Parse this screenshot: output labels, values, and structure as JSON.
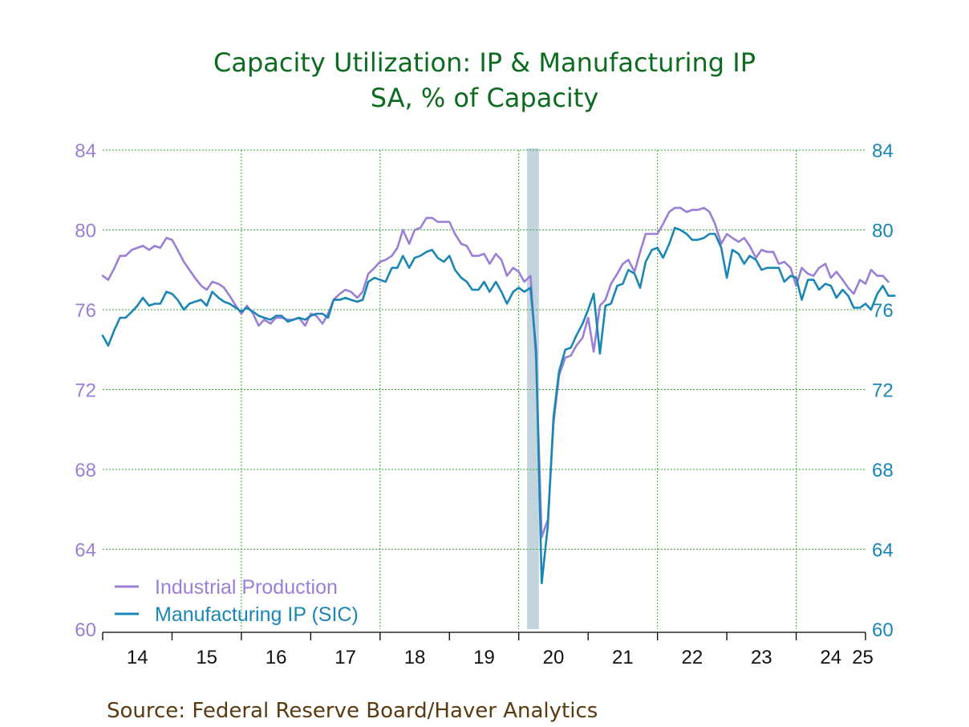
{
  "colors": {
    "industrial_production": "#9b7fd6",
    "manufacturing": "#1a86b4",
    "title": "#0b6b1e",
    "grid": "#33aa33",
    "recession": "#c2d4de",
    "source": "#5a3a10"
  },
  "chart_data": {
    "type": "line",
    "title": "Capacity Utilization: IP & Manufacturing IP",
    "subtitle": "SA, % of Capacity",
    "source": "Source:  Federal Reserve Board/Haver Analytics",
    "y_left": {
      "ticks": [
        "84",
        "80",
        "76",
        "72",
        "68",
        "64",
        "60"
      ],
      "range": [
        60,
        84
      ]
    },
    "y_right": {
      "ticks": [
        "84",
        "80",
        "76",
        "72",
        "68",
        "64",
        "60"
      ],
      "range": [
        60,
        84
      ]
    },
    "x_axis": {
      "range": [
        2014.0,
        2025.0
      ],
      "tick_labels": [
        "14",
        "15",
        "16",
        "17",
        "18",
        "19",
        "20",
        "21",
        "22",
        "23",
        "24",
        "25"
      ]
    },
    "grid": true,
    "legend_position": "bottom-left",
    "recession": {
      "start": 2020.12,
      "end": 2020.29
    },
    "series": [
      {
        "name": "Industrial Production",
        "color_key": "industrial_production",
        "points": [
          [
            2014.0,
            77.7
          ],
          [
            2014.08,
            77.5
          ],
          [
            2014.17,
            78.1
          ],
          [
            2014.25,
            78.7
          ],
          [
            2014.33,
            78.7
          ],
          [
            2014.42,
            79.0
          ],
          [
            2014.5,
            79.1
          ],
          [
            2014.58,
            79.2
          ],
          [
            2014.67,
            79.0
          ],
          [
            2014.75,
            79.2
          ],
          [
            2014.83,
            79.1
          ],
          [
            2014.92,
            79.6
          ],
          [
            2015.0,
            79.5
          ],
          [
            2015.08,
            79.0
          ],
          [
            2015.17,
            78.4
          ],
          [
            2015.25,
            78.0
          ],
          [
            2015.33,
            77.6
          ],
          [
            2015.42,
            77.2
          ],
          [
            2015.5,
            77.0
          ],
          [
            2015.58,
            77.4
          ],
          [
            2015.67,
            77.3
          ],
          [
            2015.75,
            77.1
          ],
          [
            2015.83,
            76.7
          ],
          [
            2015.92,
            76.2
          ],
          [
            2016.0,
            75.8
          ],
          [
            2016.08,
            76.2
          ],
          [
            2016.17,
            75.8
          ],
          [
            2016.25,
            75.2
          ],
          [
            2016.33,
            75.5
          ],
          [
            2016.42,
            75.3
          ],
          [
            2016.5,
            75.6
          ],
          [
            2016.58,
            75.6
          ],
          [
            2016.67,
            75.5
          ],
          [
            2016.75,
            75.5
          ],
          [
            2016.83,
            75.6
          ],
          [
            2016.92,
            75.2
          ],
          [
            2017.0,
            75.8
          ],
          [
            2017.08,
            75.7
          ],
          [
            2017.17,
            75.3
          ],
          [
            2017.25,
            75.8
          ],
          [
            2017.33,
            76.5
          ],
          [
            2017.42,
            76.8
          ],
          [
            2017.5,
            77.0
          ],
          [
            2017.58,
            76.9
          ],
          [
            2017.67,
            76.6
          ],
          [
            2017.75,
            76.9
          ],
          [
            2017.83,
            77.8
          ],
          [
            2017.92,
            78.1
          ],
          [
            2018.0,
            78.4
          ],
          [
            2018.08,
            78.5
          ],
          [
            2018.17,
            78.7
          ],
          [
            2018.25,
            79.1
          ],
          [
            2018.33,
            80.0
          ],
          [
            2018.42,
            79.3
          ],
          [
            2018.5,
            80.0
          ],
          [
            2018.58,
            80.1
          ],
          [
            2018.67,
            80.6
          ],
          [
            2018.75,
            80.6
          ],
          [
            2018.83,
            80.4
          ],
          [
            2018.92,
            80.4
          ],
          [
            2019.0,
            80.4
          ],
          [
            2019.08,
            79.8
          ],
          [
            2019.17,
            79.3
          ],
          [
            2019.25,
            79.2
          ],
          [
            2019.33,
            78.7
          ],
          [
            2019.42,
            78.7
          ],
          [
            2019.5,
            78.8
          ],
          [
            2019.58,
            78.3
          ],
          [
            2019.67,
            78.8
          ],
          [
            2019.75,
            78.5
          ],
          [
            2019.83,
            77.7
          ],
          [
            2019.92,
            78.1
          ],
          [
            2020.0,
            77.9
          ],
          [
            2020.08,
            77.4
          ],
          [
            2020.17,
            77.7
          ],
          [
            2020.25,
            73.5
          ],
          [
            2020.33,
            64.6
          ],
          [
            2020.42,
            65.5
          ],
          [
            2020.5,
            70.3
          ],
          [
            2020.58,
            72.7
          ],
          [
            2020.67,
            73.6
          ],
          [
            2020.75,
            73.7
          ],
          [
            2020.83,
            74.2
          ],
          [
            2020.92,
            74.6
          ],
          [
            2021.0,
            75.6
          ],
          [
            2021.08,
            73.9
          ],
          [
            2021.17,
            76.2
          ],
          [
            2021.25,
            76.5
          ],
          [
            2021.33,
            77.3
          ],
          [
            2021.42,
            77.8
          ],
          [
            2021.5,
            78.3
          ],
          [
            2021.58,
            78.5
          ],
          [
            2021.67,
            77.9
          ],
          [
            2021.75,
            78.9
          ],
          [
            2021.83,
            79.8
          ],
          [
            2021.92,
            79.8
          ],
          [
            2022.0,
            79.8
          ],
          [
            2022.08,
            80.3
          ],
          [
            2022.17,
            80.9
          ],
          [
            2022.25,
            81.1
          ],
          [
            2022.33,
            81.1
          ],
          [
            2022.42,
            80.9
          ],
          [
            2022.5,
            81.0
          ],
          [
            2022.58,
            81.0
          ],
          [
            2022.67,
            81.1
          ],
          [
            2022.75,
            80.9
          ],
          [
            2022.83,
            80.3
          ],
          [
            2022.92,
            79.3
          ],
          [
            2023.0,
            79.8
          ],
          [
            2023.08,
            79.6
          ],
          [
            2023.17,
            79.4
          ],
          [
            2023.25,
            79.6
          ],
          [
            2023.33,
            79.2
          ],
          [
            2023.42,
            78.6
          ],
          [
            2023.5,
            79.0
          ],
          [
            2023.58,
            78.9
          ],
          [
            2023.67,
            78.9
          ],
          [
            2023.75,
            78.3
          ],
          [
            2023.83,
            78.4
          ],
          [
            2023.92,
            78.1
          ],
          [
            2024.0,
            77.2
          ],
          [
            2024.08,
            78.1
          ],
          [
            2024.17,
            77.8
          ],
          [
            2024.25,
            77.7
          ],
          [
            2024.33,
            78.1
          ],
          [
            2024.42,
            78.3
          ],
          [
            2024.5,
            77.6
          ],
          [
            2024.58,
            77.9
          ],
          [
            2024.67,
            77.5
          ],
          [
            2024.75,
            77.1
          ],
          [
            2024.83,
            76.8
          ],
          [
            2024.92,
            77.5
          ],
          [
            2025.0,
            77.3
          ],
          [
            2025.08,
            78.0
          ],
          [
            2025.17,
            77.7
          ],
          [
            2025.25,
            77.7
          ],
          [
            2025.33,
            77.4
          ]
        ]
      },
      {
        "name": "Manufacturing IP (SIC)",
        "color_key": "manufacturing",
        "points": [
          [
            2014.0,
            74.7
          ],
          [
            2014.08,
            74.2
          ],
          [
            2014.17,
            75.0
          ],
          [
            2014.25,
            75.6
          ],
          [
            2014.33,
            75.6
          ],
          [
            2014.42,
            75.9
          ],
          [
            2014.5,
            76.2
          ],
          [
            2014.58,
            76.6
          ],
          [
            2014.67,
            76.2
          ],
          [
            2014.75,
            76.3
          ],
          [
            2014.83,
            76.3
          ],
          [
            2014.92,
            76.9
          ],
          [
            2015.0,
            76.8
          ],
          [
            2015.08,
            76.5
          ],
          [
            2015.17,
            76.0
          ],
          [
            2015.25,
            76.3
          ],
          [
            2015.33,
            76.4
          ],
          [
            2015.42,
            76.5
          ],
          [
            2015.5,
            76.2
          ],
          [
            2015.58,
            76.9
          ],
          [
            2015.67,
            76.6
          ],
          [
            2015.75,
            76.4
          ],
          [
            2015.83,
            76.3
          ],
          [
            2015.92,
            76.1
          ],
          [
            2016.0,
            75.9
          ],
          [
            2016.08,
            76.1
          ],
          [
            2016.17,
            75.9
          ],
          [
            2016.25,
            75.7
          ],
          [
            2016.33,
            75.6
          ],
          [
            2016.42,
            75.5
          ],
          [
            2016.5,
            75.7
          ],
          [
            2016.58,
            75.7
          ],
          [
            2016.67,
            75.4
          ],
          [
            2016.75,
            75.5
          ],
          [
            2016.83,
            75.6
          ],
          [
            2016.92,
            75.5
          ],
          [
            2017.0,
            75.7
          ],
          [
            2017.08,
            75.8
          ],
          [
            2017.17,
            75.8
          ],
          [
            2017.25,
            75.6
          ],
          [
            2017.33,
            76.5
          ],
          [
            2017.42,
            76.5
          ],
          [
            2017.5,
            76.6
          ],
          [
            2017.58,
            76.5
          ],
          [
            2017.67,
            76.4
          ],
          [
            2017.75,
            76.5
          ],
          [
            2017.83,
            77.4
          ],
          [
            2017.92,
            77.6
          ],
          [
            2018.0,
            77.5
          ],
          [
            2018.08,
            77.4
          ],
          [
            2018.17,
            78.1
          ],
          [
            2018.25,
            78.1
          ],
          [
            2018.33,
            78.7
          ],
          [
            2018.42,
            78.1
          ],
          [
            2018.5,
            78.6
          ],
          [
            2018.58,
            78.7
          ],
          [
            2018.67,
            78.9
          ],
          [
            2018.75,
            79.0
          ],
          [
            2018.83,
            78.6
          ],
          [
            2018.92,
            78.4
          ],
          [
            2019.0,
            78.7
          ],
          [
            2019.08,
            78.0
          ],
          [
            2019.17,
            77.6
          ],
          [
            2019.25,
            77.4
          ],
          [
            2019.33,
            77.0
          ],
          [
            2019.42,
            77.0
          ],
          [
            2019.5,
            77.4
          ],
          [
            2019.58,
            76.9
          ],
          [
            2019.67,
            77.4
          ],
          [
            2019.75,
            76.9
          ],
          [
            2019.83,
            76.3
          ],
          [
            2019.92,
            76.9
          ],
          [
            2020.0,
            77.1
          ],
          [
            2020.08,
            76.9
          ],
          [
            2020.17,
            77.1
          ],
          [
            2020.25,
            74.0
          ],
          [
            2020.33,
            62.3
          ],
          [
            2020.42,
            65.2
          ],
          [
            2020.5,
            70.6
          ],
          [
            2020.58,
            72.9
          ],
          [
            2020.67,
            74.0
          ],
          [
            2020.75,
            74.1
          ],
          [
            2020.83,
            74.7
          ],
          [
            2020.92,
            75.3
          ],
          [
            2021.0,
            76.0
          ],
          [
            2021.08,
            76.8
          ],
          [
            2021.17,
            73.8
          ],
          [
            2021.25,
            76.2
          ],
          [
            2021.33,
            76.3
          ],
          [
            2021.42,
            77.2
          ],
          [
            2021.5,
            77.3
          ],
          [
            2021.58,
            78.0
          ],
          [
            2021.67,
            77.8
          ],
          [
            2021.75,
            77.1
          ],
          [
            2021.83,
            78.4
          ],
          [
            2021.92,
            79.0
          ],
          [
            2022.0,
            79.1
          ],
          [
            2022.08,
            78.6
          ],
          [
            2022.17,
            79.3
          ],
          [
            2022.25,
            80.1
          ],
          [
            2022.33,
            80.0
          ],
          [
            2022.42,
            79.8
          ],
          [
            2022.5,
            79.5
          ],
          [
            2022.58,
            79.5
          ],
          [
            2022.67,
            79.6
          ],
          [
            2022.75,
            79.8
          ],
          [
            2022.83,
            79.8
          ],
          [
            2022.92,
            79.1
          ],
          [
            2023.0,
            77.6
          ],
          [
            2023.08,
            79.0
          ],
          [
            2023.17,
            78.8
          ],
          [
            2023.25,
            78.3
          ],
          [
            2023.33,
            78.7
          ],
          [
            2023.42,
            78.5
          ],
          [
            2023.5,
            78.0
          ],
          [
            2023.58,
            78.1
          ],
          [
            2023.67,
            78.1
          ],
          [
            2023.75,
            78.1
          ],
          [
            2023.83,
            77.4
          ],
          [
            2023.92,
            77.7
          ],
          [
            2024.0,
            77.6
          ],
          [
            2024.08,
            76.5
          ],
          [
            2024.17,
            77.5
          ],
          [
            2024.25,
            77.5
          ],
          [
            2024.33,
            77.0
          ],
          [
            2024.42,
            77.3
          ],
          [
            2024.5,
            77.2
          ],
          [
            2024.58,
            76.6
          ],
          [
            2024.67,
            77.0
          ],
          [
            2024.75,
            76.7
          ],
          [
            2024.83,
            76.1
          ],
          [
            2024.92,
            76.1
          ],
          [
            2025.0,
            76.3
          ],
          [
            2025.08,
            76.0
          ],
          [
            2025.17,
            76.8
          ],
          [
            2025.25,
            77.2
          ],
          [
            2025.33,
            76.7
          ],
          [
            2025.42,
            76.7
          ]
        ]
      }
    ]
  }
}
